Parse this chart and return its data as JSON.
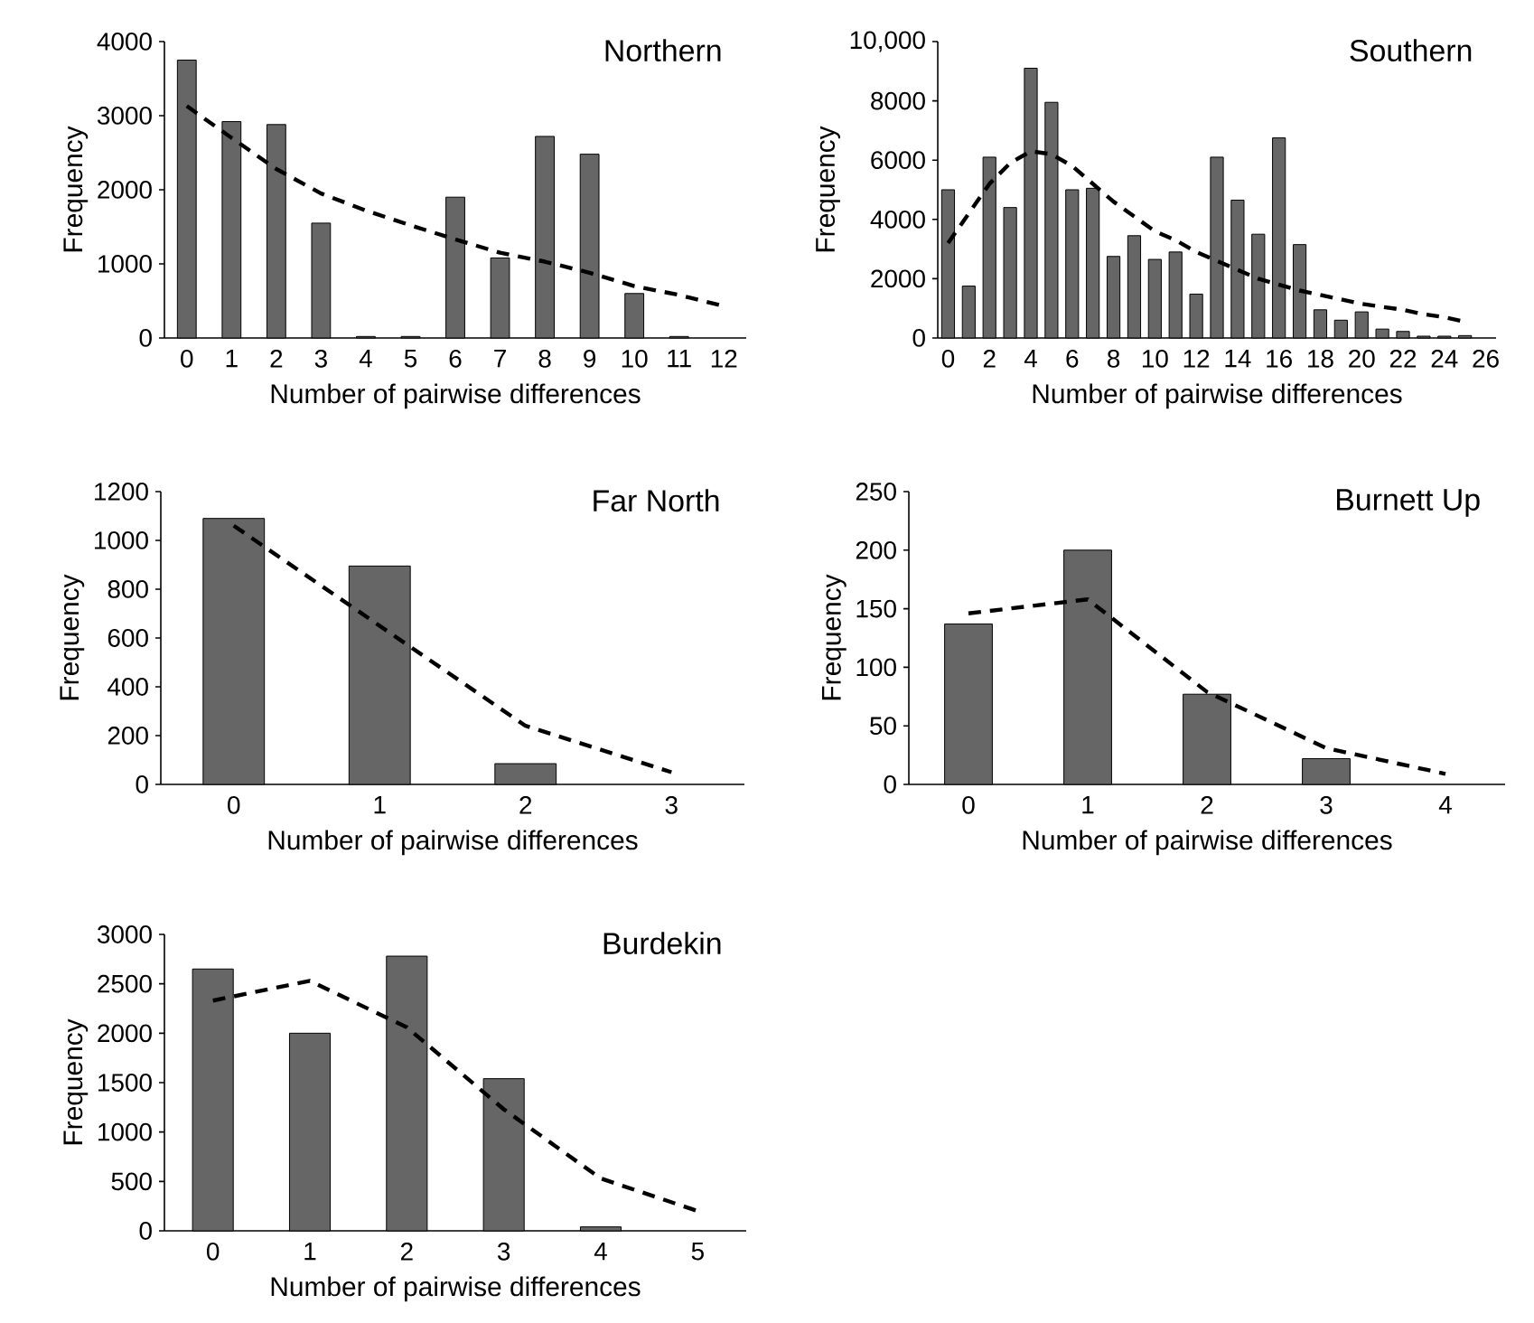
{
  "chart_data": [
    {
      "type": "bar",
      "title": "Northern",
      "xlabel": "Number of pairwise differences",
      "ylabel": "Frequency",
      "categories": [
        "0",
        "1",
        "2",
        "3",
        "4",
        "5",
        "6",
        "7",
        "8",
        "9",
        "10",
        "11",
        "12"
      ],
      "series": [
        {
          "color": "#666666",
          "values": [
            3750,
            2920,
            2880,
            1550,
            20,
            20,
            1900,
            1080,
            2720,
            2480,
            600,
            20,
            null
          ]
        },
        {
          "type": "line",
          "color": "#000000",
          "line_style": "dashed",
          "values": [
            3130,
            2700,
            2280,
            1950,
            1720,
            1520,
            1330,
            1150,
            1030,
            880,
            700,
            580,
            430
          ]
        }
      ],
      "ylim": [
        0,
        4000
      ],
      "yticks": [
        0,
        1000,
        2000,
        3000,
        4000
      ]
    },
    {
      "type": "bar",
      "title": "Southern",
      "xlabel": "Number of pairwise differences",
      "ylabel": "Frequency",
      "categories": [
        "0",
        null,
        "2",
        null,
        "4",
        null,
        "6",
        null,
        "8",
        null,
        "10",
        null,
        "12",
        null,
        "14",
        null,
        "16",
        null,
        "18",
        null,
        "20",
        null,
        "22",
        null,
        "24",
        null,
        "26"
      ],
      "series": [
        {
          "color": "#666666",
          "values": [
            5000,
            1750,
            6100,
            4400,
            9100,
            7950,
            5000,
            5050,
            2750,
            3450,
            2650,
            2900,
            1480,
            6100,
            4650,
            3500,
            6750,
            3150,
            950,
            600,
            880,
            300,
            220,
            60,
            60,
            80,
            null
          ]
        },
        {
          "type": "line",
          "color": "#000000",
          "line_style": "dashed",
          "values": [
            3200,
            4200,
            5200,
            5900,
            6300,
            6200,
            5800,
            5200,
            4600,
            4100,
            3600,
            3300,
            2900,
            2600,
            2300,
            2000,
            1800,
            1600,
            1450,
            1300,
            1150,
            1050,
            950,
            800,
            700,
            550,
            null
          ]
        }
      ],
      "ylim": [
        0,
        10000
      ],
      "yticks": [
        0,
        2000,
        4000,
        6000,
        8000,
        {
          "value": 10000,
          "label": "10,000"
        }
      ]
    },
    {
      "type": "bar",
      "title": "Far North",
      "xlabel": "Number of pairwise differences",
      "ylabel": "Frequency",
      "categories": [
        "0",
        "1",
        "2",
        "3"
      ],
      "series": [
        {
          "color": "#666666",
          "values": [
            1090,
            895,
            85,
            null
          ]
        },
        {
          "type": "line",
          "color": "#000000",
          "line_style": "dashed",
          "values": [
            1060,
            650,
            240,
            50
          ]
        }
      ],
      "ylim": [
        0,
        1200
      ],
      "yticks": [
        0,
        200,
        400,
        600,
        800,
        1000,
        1200
      ]
    },
    {
      "type": "bar",
      "title": "Burnett Up",
      "xlabel": "Number of pairwise differences",
      "ylabel": "Frequency",
      "categories": [
        "0",
        "1",
        "2",
        "3",
        "4"
      ],
      "series": [
        {
          "color": "#666666",
          "values": [
            137,
            200,
            77,
            22,
            null
          ]
        },
        {
          "type": "line",
          "color": "#000000",
          "line_style": "dashed",
          "values": [
            146,
            158,
            79,
            31,
            9
          ]
        }
      ],
      "ylim": [
        0,
        250
      ],
      "yticks": [
        0,
        50,
        100,
        150,
        200,
        250
      ]
    },
    {
      "type": "bar",
      "title": "Burdekin",
      "xlabel": "Number of pairwise differences",
      "ylabel": "Frequency",
      "categories": [
        "0",
        "1",
        "2",
        "3",
        "4",
        "5"
      ],
      "series": [
        {
          "color": "#666666",
          "values": [
            2650,
            2000,
            2780,
            1540,
            40,
            null
          ]
        },
        {
          "type": "line",
          "color": "#000000",
          "line_style": "dashed",
          "values": [
            2330,
            2530,
            2060,
            1230,
            530,
            200
          ]
        }
      ],
      "ylim": [
        0,
        3000
      ],
      "yticks": [
        0,
        500,
        1000,
        1500,
        2000,
        2500,
        3000
      ]
    }
  ]
}
